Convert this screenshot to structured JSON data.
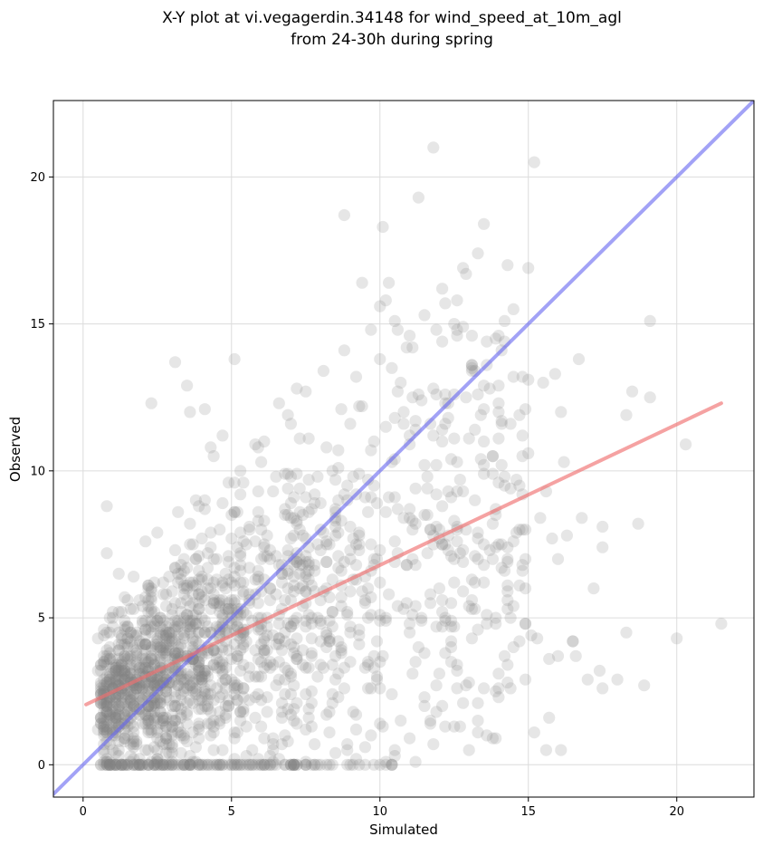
{
  "chart_data": {
    "type": "scatter",
    "title": "X-Y plot at vi.vegagerdin.34148 for wind_speed_at_10m_agl",
    "subtitle": "from 24-30h during spring",
    "xlabel": "Simulated",
    "ylabel": "Observed",
    "xlim": [
      -1.0,
      22.6
    ],
    "ylim": [
      -1.1,
      22.6
    ],
    "xticks": [
      0,
      5,
      10,
      15,
      20
    ],
    "yticks": [
      0,
      5,
      10,
      15,
      20
    ],
    "grid": true,
    "legend": "none",
    "point_count": 1900,
    "point_color": "#808080",
    "identity_line": {
      "color": "#6464f0",
      "from": [
        -1.0,
        -1.0
      ],
      "to": [
        22.6,
        22.6
      ]
    },
    "regression_line": {
      "color": "#f07070",
      "from": [
        0.1,
        2.05
      ],
      "to": [
        21.5,
        12.3
      ]
    },
    "series": [
      {
        "values": [
          [
            11.8,
            21.0
          ],
          [
            15.2,
            20.5
          ],
          [
            11.3,
            19.3
          ],
          [
            8.8,
            18.7
          ],
          [
            13.5,
            18.4
          ],
          [
            10.1,
            18.3
          ],
          [
            13.3,
            17.4
          ],
          [
            9.4,
            16.4
          ],
          [
            10.2,
            15.8
          ],
          [
            14.5,
            15.5
          ],
          [
            3.1,
            13.7
          ],
          [
            3.5,
            12.9
          ],
          [
            2.3,
            12.3
          ],
          [
            3.6,
            12.0
          ],
          [
            4.1,
            12.1
          ],
          [
            19.1,
            15.1
          ],
          [
            20.3,
            10.9
          ],
          [
            18.3,
            11.9
          ],
          [
            18.5,
            12.7
          ],
          [
            19.1,
            12.5
          ],
          [
            0.8,
            8.8
          ],
          [
            0.8,
            7.2
          ],
          [
            1.2,
            6.5
          ],
          [
            15.4,
            8.4
          ],
          [
            16.7,
            13.8
          ],
          [
            16.8,
            8.4
          ],
          [
            17.5,
            8.1
          ],
          [
            18.7,
            8.2
          ],
          [
            17.5,
            7.4
          ],
          [
            17.2,
            6.0
          ],
          [
            21.5,
            4.8
          ],
          [
            20.0,
            4.3
          ],
          [
            18.9,
            2.7
          ],
          [
            18.0,
            2.9
          ],
          [
            17.5,
            2.6
          ],
          [
            17.0,
            2.9
          ],
          [
            16.6,
            3.7
          ],
          [
            16.5,
            4.2
          ],
          [
            15.6,
            0.5
          ],
          [
            16.1,
            0.5
          ],
          [
            15.2,
            1.1
          ],
          [
            15.7,
            1.6
          ],
          [
            13.0,
            0.5
          ],
          [
            13.3,
            1.1
          ],
          [
            13.9,
            0.9
          ],
          [
            14.0,
            2.3
          ],
          [
            14.5,
            4.0
          ],
          [
            15.3,
            4.3
          ],
          [
            14.9,
            2.9
          ],
          [
            17.4,
            3.2
          ],
          [
            18.3,
            4.5
          ],
          [
            16.5,
            4.2
          ],
          [
            16.0,
            3.7
          ],
          [
            15.7,
            3.6
          ],
          [
            15.1,
            4.4
          ],
          [
            16.0,
            7.0
          ],
          [
            15.8,
            7.7
          ],
          [
            16.3,
            7.8
          ],
          [
            15.6,
            9.3
          ],
          [
            16.2,
            10.3
          ],
          [
            14.8,
            11.2
          ],
          [
            14.9,
            12.1
          ],
          [
            15.5,
            13.0
          ],
          [
            16.1,
            12.0
          ],
          [
            15.9,
            13.3
          ],
          [
            15.0,
            10.6
          ],
          [
            14.2,
            9.8
          ],
          [
            14.0,
            11.1
          ],
          [
            14.3,
            7.0
          ],
          [
            14.8,
            6.8
          ],
          [
            13.2,
            5.3
          ],
          [
            13.6,
            5.1
          ],
          [
            12.4,
            4.9
          ],
          [
            12.6,
            2.6
          ],
          [
            11.5,
            2.3
          ],
          [
            11.9,
            1.8
          ],
          [
            11.0,
            0.9
          ],
          [
            10.5,
            0.5
          ],
          [
            10.2,
            0.1
          ],
          [
            9.5,
            0.6
          ],
          [
            9.0,
            0.0
          ],
          [
            8.4,
            0.0
          ],
          [
            7.8,
            0.0
          ],
          [
            7.1,
            0.0
          ],
          [
            6.4,
            0.0
          ],
          [
            5.7,
            0.0
          ],
          [
            5.1,
            0.0
          ],
          [
            4.5,
            0.0
          ],
          [
            3.9,
            0.0
          ],
          [
            3.4,
            0.0
          ],
          [
            2.9,
            0.0
          ],
          [
            2.4,
            0.0
          ],
          [
            1.9,
            0.0
          ],
          [
            1.4,
            0.0
          ],
          [
            0.9,
            0.0
          ],
          [
            0.7,
            0.5
          ],
          [
            0.5,
            1.2
          ],
          [
            0.6,
            2.4
          ],
          [
            0.6,
            3.4
          ],
          [
            0.5,
            4.3
          ],
          [
            1.0,
            5.0
          ],
          [
            1.4,
            5.7
          ],
          [
            1.7,
            6.4
          ],
          [
            2.1,
            7.6
          ],
          [
            2.5,
            7.9
          ],
          [
            3.2,
            8.6
          ],
          [
            3.8,
            9.0
          ],
          [
            4.3,
            10.8
          ],
          [
            4.7,
            11.2
          ],
          [
            5.3,
            10.0
          ],
          [
            6.1,
            11.0
          ],
          [
            6.6,
            12.3
          ],
          [
            7.2,
            12.8
          ],
          [
            7.5,
            12.7
          ],
          [
            8.1,
            13.4
          ],
          [
            8.8,
            14.1
          ],
          [
            9.2,
            13.2
          ],
          [
            9.7,
            14.8
          ],
          [
            10.4,
            13.5
          ],
          [
            10.9,
            14.2
          ],
          [
            11.5,
            15.3
          ],
          [
            12.1,
            14.4
          ],
          [
            12.6,
            14.6
          ],
          [
            13.1,
            13.6
          ],
          [
            13.6,
            14.4
          ],
          [
            14.1,
            14.1
          ],
          [
            12.3,
            12.3
          ],
          [
            11.2,
            11.4
          ],
          [
            10.5,
            10.4
          ],
          [
            9.6,
            9.7
          ],
          [
            8.5,
            8.6
          ],
          [
            7.6,
            7.4
          ],
          [
            6.7,
            6.8
          ],
          [
            5.6,
            5.6
          ],
          [
            4.6,
            4.6
          ],
          [
            3.7,
            3.8
          ],
          [
            2.8,
            2.9
          ],
          [
            1.9,
            1.9
          ],
          [
            1.2,
            1.3
          ],
          [
            2.4,
            0.6
          ]
        ]
      }
    ]
  }
}
